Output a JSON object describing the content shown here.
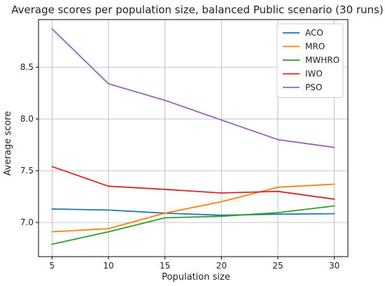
{
  "chart_data": {
    "type": "line",
    "title": "Average scores per population size, balanced Public scenario (30 runs)",
    "xlabel": "Population size",
    "ylabel": "Average score",
    "x": [
      5,
      10,
      15,
      20,
      25,
      30
    ],
    "x_ticks": [
      5,
      10,
      15,
      20,
      25,
      30
    ],
    "y_ticks": [
      7.0,
      7.5,
      8.0,
      8.5
    ],
    "y_tick_labels": [
      "7.0",
      "7.5",
      "8.0",
      "8.5"
    ],
    "xlim": [
      3.8,
      31.2
    ],
    "ylim": [
      6.67,
      8.96
    ],
    "grid": true,
    "legend_position": "top-right",
    "series": [
      {
        "name": "ACO",
        "color": "#1f77b4",
        "values": [
          7.13,
          7.12,
          7.09,
          7.07,
          7.08,
          7.085
        ]
      },
      {
        "name": "MRO",
        "color": "#ff7f0e",
        "values": [
          6.91,
          6.94,
          7.09,
          7.2,
          7.34,
          7.37
        ]
      },
      {
        "name": "MWHRO",
        "color": "#2ca02c",
        "values": [
          6.79,
          6.91,
          7.045,
          7.06,
          7.095,
          7.16
        ]
      },
      {
        "name": "IWO",
        "color": "#d62728",
        "values": [
          7.54,
          7.35,
          7.32,
          7.285,
          7.3,
          7.225
        ]
      },
      {
        "name": "PSO",
        "color": "#9467bd",
        "values": [
          8.87,
          8.34,
          8.18,
          7.99,
          7.8,
          7.725
        ]
      }
    ]
  }
}
